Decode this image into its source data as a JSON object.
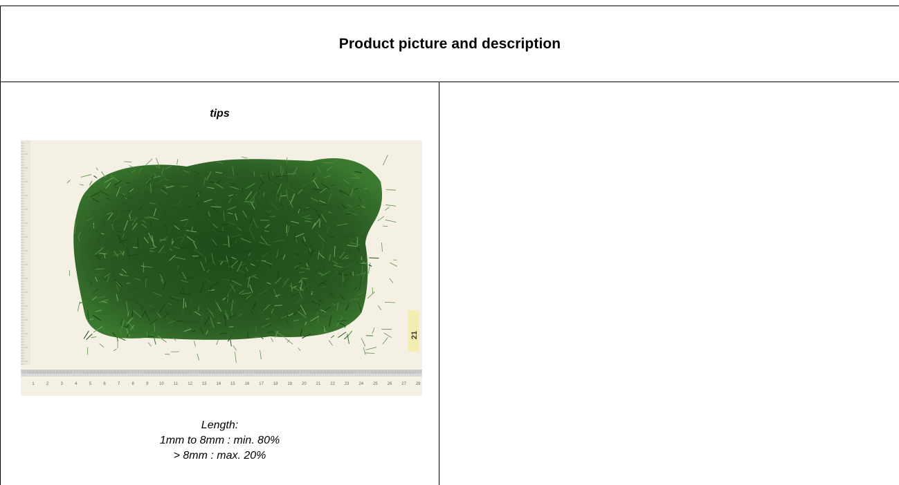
{
  "header": {
    "title": "Product picture and description"
  },
  "product": {
    "name": "tips",
    "photo_icon": "herb-sample-on-ruler-photo",
    "description": {
      "heading": "Length:",
      "line_1": "1mm to 8mm : min. 80%",
      "line_2": "> 8mm : max. 20%"
    },
    "ruler_label": "21",
    "ruler_ticks": [
      "1",
      "2",
      "3",
      "4",
      "5",
      "6",
      "7",
      "8",
      "9",
      "10",
      "11",
      "12",
      "13",
      "14",
      "15",
      "16",
      "17",
      "18",
      "19",
      "20",
      "21",
      "22",
      "23",
      "24",
      "25",
      "26",
      "27",
      "28"
    ]
  },
  "colors": {
    "border": "#000000",
    "photo_background": "#f4f0e4",
    "herb_dark": "#1f4a1a",
    "herb_mid": "#2f6a27",
    "herb_light": "#6fa35a"
  }
}
